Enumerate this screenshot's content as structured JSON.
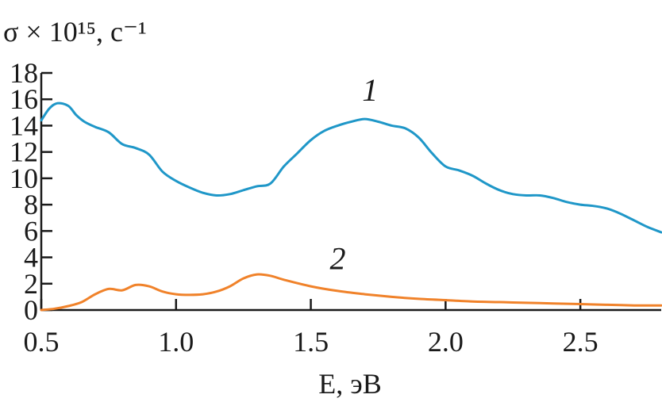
{
  "chart_data": {
    "type": "line",
    "ylabel": "σ × 10¹⁵, с⁻¹",
    "xlabel": "E, эВ",
    "xlim": [
      0.5,
      2.8
    ],
    "ylim": [
      0,
      18
    ],
    "x_ticks": [
      "0.5",
      "1.0",
      "1.5",
      "2.0",
      "2.5"
    ],
    "x_tick_values": [
      0.5,
      1.0,
      1.5,
      2.0,
      2.5
    ],
    "y_ticks": [
      "0",
      "2",
      "4",
      "6",
      "8",
      "10",
      "12",
      "14",
      "16",
      "18"
    ],
    "y_tick_values": [
      0,
      2,
      4,
      6,
      8,
      10,
      12,
      14,
      16,
      18
    ],
    "grid": false,
    "series": [
      {
        "name": "1",
        "color": "#1f97c8",
        "label_at": [
          1.72,
          15.9
        ],
        "x": [
          0.5,
          0.53,
          0.56,
          0.6,
          0.63,
          0.66,
          0.7,
          0.75,
          0.8,
          0.85,
          0.9,
          0.95,
          1.0,
          1.05,
          1.1,
          1.15,
          1.2,
          1.25,
          1.3,
          1.35,
          1.4,
          1.45,
          1.5,
          1.55,
          1.6,
          1.65,
          1.7,
          1.75,
          1.8,
          1.85,
          1.9,
          1.95,
          2.0,
          2.05,
          2.1,
          2.15,
          2.2,
          2.25,
          2.3,
          2.35,
          2.4,
          2.45,
          2.5,
          2.55,
          2.6,
          2.65,
          2.7,
          2.75,
          2.8
        ],
        "y": [
          14.4,
          15.3,
          15.7,
          15.5,
          14.8,
          14.3,
          13.9,
          13.5,
          12.6,
          12.3,
          11.8,
          10.5,
          9.8,
          9.3,
          8.9,
          8.7,
          8.8,
          9.1,
          9.4,
          9.6,
          10.9,
          11.9,
          12.9,
          13.6,
          14.0,
          14.3,
          14.5,
          14.3,
          14.0,
          13.8,
          13.1,
          11.9,
          10.9,
          10.6,
          10.2,
          9.6,
          9.1,
          8.8,
          8.7,
          8.7,
          8.5,
          8.2,
          8.0,
          7.9,
          7.7,
          7.3,
          6.8,
          6.3,
          5.9
        ]
      },
      {
        "name": "2",
        "color": "#f0822a",
        "label_at": [
          1.6,
          3.1
        ],
        "x": [
          0.5,
          0.55,
          0.6,
          0.65,
          0.7,
          0.75,
          0.8,
          0.85,
          0.9,
          0.95,
          1.0,
          1.05,
          1.1,
          1.15,
          1.2,
          1.25,
          1.3,
          1.35,
          1.4,
          1.5,
          1.6,
          1.7,
          1.8,
          1.9,
          2.0,
          2.1,
          2.2,
          2.3,
          2.4,
          2.5,
          2.6,
          2.7,
          2.8
        ],
        "y": [
          0.0,
          0.1,
          0.3,
          0.6,
          1.2,
          1.6,
          1.5,
          1.9,
          1.8,
          1.4,
          1.2,
          1.15,
          1.2,
          1.4,
          1.8,
          2.4,
          2.7,
          2.6,
          2.3,
          1.8,
          1.45,
          1.2,
          1.0,
          0.85,
          0.75,
          0.65,
          0.6,
          0.55,
          0.5,
          0.45,
          0.4,
          0.35,
          0.35
        ]
      }
    ]
  }
}
